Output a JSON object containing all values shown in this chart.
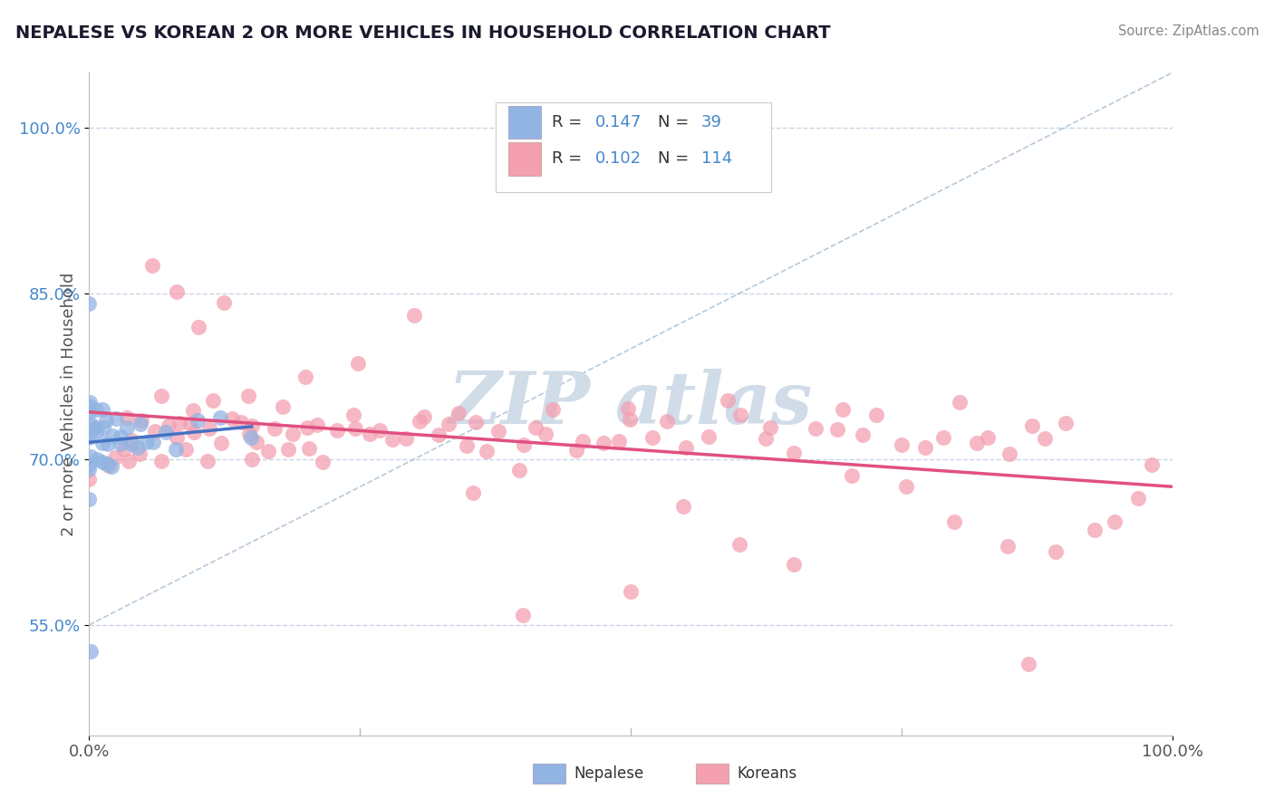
{
  "title": "NEPALESE VS KOREAN 2 OR MORE VEHICLES IN HOUSEHOLD CORRELATION CHART",
  "source": "Source: ZipAtlas.com",
  "ylabel": "2 or more Vehicles in Household",
  "xlim": [
    0.0,
    1.0
  ],
  "ylim": [
    0.45,
    1.05
  ],
  "ytick_vals": [
    0.55,
    0.7,
    0.85,
    1.0
  ],
  "ytick_labels": [
    "55.0%",
    "70.0%",
    "85.0%",
    "100.0%"
  ],
  "xtick_vals": [
    0.0,
    1.0
  ],
  "xtick_labels": [
    "0.0%",
    "100.0%"
  ],
  "legend_label1": "Nepalese",
  "legend_label2": "Koreans",
  "color_nepalese": "#92b4e3",
  "color_koreans": "#f4a0b0",
  "color_line_nepalese": "#4472c4",
  "color_line_koreans": "#e05080",
  "color_diag": "#a8c0d8",
  "background_color": "#ffffff",
  "grid_color": "#c8d4e4",
  "title_color": "#1a1a2e",
  "source_color": "#888888",
  "ytick_color": "#4488cc",
  "watermark_color": "#d0dce8",
  "nepalese_x": [
    0.0,
    0.0,
    0.0,
    0.0,
    0.0,
    0.0,
    0.0,
    0.0,
    0.0,
    0.0,
    0.0,
    0.0,
    0.005,
    0.005,
    0.008,
    0.008,
    0.01,
    0.01,
    0.012,
    0.012,
    0.015,
    0.015,
    0.018,
    0.02,
    0.022,
    0.025,
    0.028,
    0.03,
    0.035,
    0.04,
    0.045,
    0.05,
    0.055,
    0.06,
    0.07,
    0.08,
    0.1,
    0.12,
    0.15
  ],
  "nepalese_y": [
    0.84,
    0.53,
    0.76,
    0.75,
    0.74,
    0.73,
    0.72,
    0.71,
    0.7,
    0.69,
    0.68,
    0.67,
    0.75,
    0.72,
    0.73,
    0.7,
    0.74,
    0.71,
    0.72,
    0.69,
    0.73,
    0.7,
    0.71,
    0.72,
    0.7,
    0.73,
    0.71,
    0.72,
    0.73,
    0.72,
    0.71,
    0.73,
    0.72,
    0.71,
    0.73,
    0.72,
    0.73,
    0.74,
    0.72
  ],
  "koreans_x": [
    0.0,
    0.01,
    0.02,
    0.02,
    0.03,
    0.03,
    0.04,
    0.04,
    0.05,
    0.05,
    0.06,
    0.06,
    0.07,
    0.07,
    0.08,
    0.08,
    0.09,
    0.09,
    0.1,
    0.1,
    0.11,
    0.11,
    0.12,
    0.12,
    0.13,
    0.14,
    0.14,
    0.15,
    0.15,
    0.16,
    0.17,
    0.17,
    0.18,
    0.18,
    0.19,
    0.2,
    0.2,
    0.21,
    0.22,
    0.23,
    0.24,
    0.25,
    0.26,
    0.27,
    0.28,
    0.29,
    0.3,
    0.31,
    0.32,
    0.33,
    0.34,
    0.35,
    0.36,
    0.37,
    0.38,
    0.4,
    0.41,
    0.42,
    0.43,
    0.45,
    0.47,
    0.49,
    0.5,
    0.52,
    0.53,
    0.55,
    0.57,
    0.59,
    0.6,
    0.62,
    0.63,
    0.65,
    0.67,
    0.69,
    0.7,
    0.72,
    0.73,
    0.75,
    0.77,
    0.79,
    0.8,
    0.82,
    0.83,
    0.85,
    0.87,
    0.88,
    0.9,
    0.87,
    0.35,
    0.4,
    0.45,
    0.5,
    0.15,
    0.2,
    0.25,
    0.3,
    0.1,
    0.12,
    0.08,
    0.06,
    0.55,
    0.6,
    0.65,
    0.7,
    0.75,
    0.8,
    0.85,
    0.9,
    0.93,
    0.95,
    0.97,
    0.98,
    0.4,
    0.5
  ],
  "koreans_y": [
    0.68,
    0.73,
    0.7,
    0.72,
    0.74,
    0.71,
    0.72,
    0.7,
    0.73,
    0.71,
    0.74,
    0.72,
    0.73,
    0.7,
    0.72,
    0.74,
    0.71,
    0.73,
    0.72,
    0.74,
    0.73,
    0.71,
    0.72,
    0.74,
    0.73,
    0.72,
    0.74,
    0.73,
    0.71,
    0.72,
    0.73,
    0.71,
    0.74,
    0.72,
    0.73,
    0.74,
    0.72,
    0.73,
    0.71,
    0.72,
    0.73,
    0.74,
    0.72,
    0.73,
    0.71,
    0.72,
    0.73,
    0.74,
    0.72,
    0.73,
    0.74,
    0.72,
    0.73,
    0.71,
    0.72,
    0.73,
    0.74,
    0.72,
    0.73,
    0.71,
    0.72,
    0.73,
    0.74,
    0.72,
    0.73,
    0.71,
    0.72,
    0.73,
    0.74,
    0.72,
    0.73,
    0.71,
    0.72,
    0.73,
    0.74,
    0.72,
    0.73,
    0.71,
    0.72,
    0.73,
    0.74,
    0.72,
    0.73,
    0.71,
    0.72,
    0.73,
    0.74,
    0.52,
    0.68,
    0.7,
    0.72,
    0.74,
    0.76,
    0.78,
    0.8,
    0.82,
    0.83,
    0.84,
    0.86,
    0.87,
    0.65,
    0.63,
    0.62,
    0.68,
    0.66,
    0.64,
    0.62,
    0.61,
    0.63,
    0.65,
    0.67,
    0.69,
    0.56,
    0.57
  ]
}
